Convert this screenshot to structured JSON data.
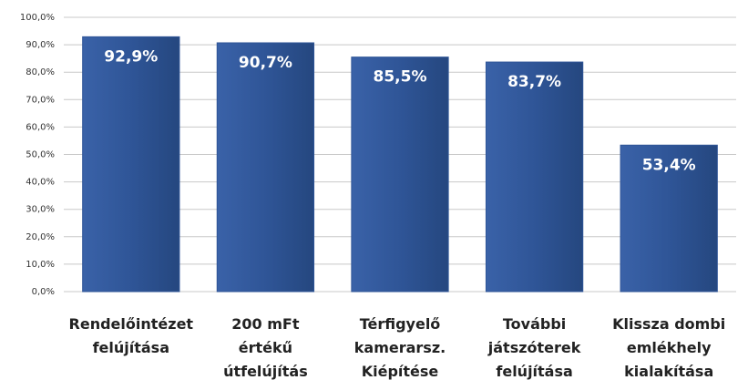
{
  "chart_data": {
    "type": "bar",
    "categories": [
      [
        "Rendelőintézet",
        "felújítása"
      ],
      [
        "200 mFt",
        "értékű",
        "útfelújítás"
      ],
      [
        "Térfigyelő",
        "kamerarsz.",
        "Kiépítése"
      ],
      [
        "További",
        "játszóterek",
        "felújítása"
      ],
      [
        "Klissza dombi",
        "emlékhely",
        "kialakítása"
      ]
    ],
    "values": [
      92.9,
      90.7,
      85.5,
      83.7,
      53.4
    ],
    "value_labels": [
      "92,9%",
      "90,7%",
      "85,5%",
      "83,7%",
      "53,4%"
    ],
    "color": "#2f5597",
    "ylim": [
      0,
      100
    ],
    "yticks": [
      {
        "value": 0,
        "label": "0,0%"
      },
      {
        "value": 10,
        "label": "10,0%"
      },
      {
        "value": 20,
        "label": "20,0%"
      },
      {
        "value": 30,
        "label": "30,0%"
      },
      {
        "value": 40,
        "label": "40,0%"
      },
      {
        "value": 50,
        "label": "50,0%"
      },
      {
        "value": 60,
        "label": "60,0%"
      },
      {
        "value": 70,
        "label": "70,0%"
      },
      {
        "value": 80,
        "label": "80,0%"
      },
      {
        "value": 90,
        "label": "90,0%"
      },
      {
        "value": 100,
        "label": "100,0%"
      }
    ],
    "grid": true
  }
}
